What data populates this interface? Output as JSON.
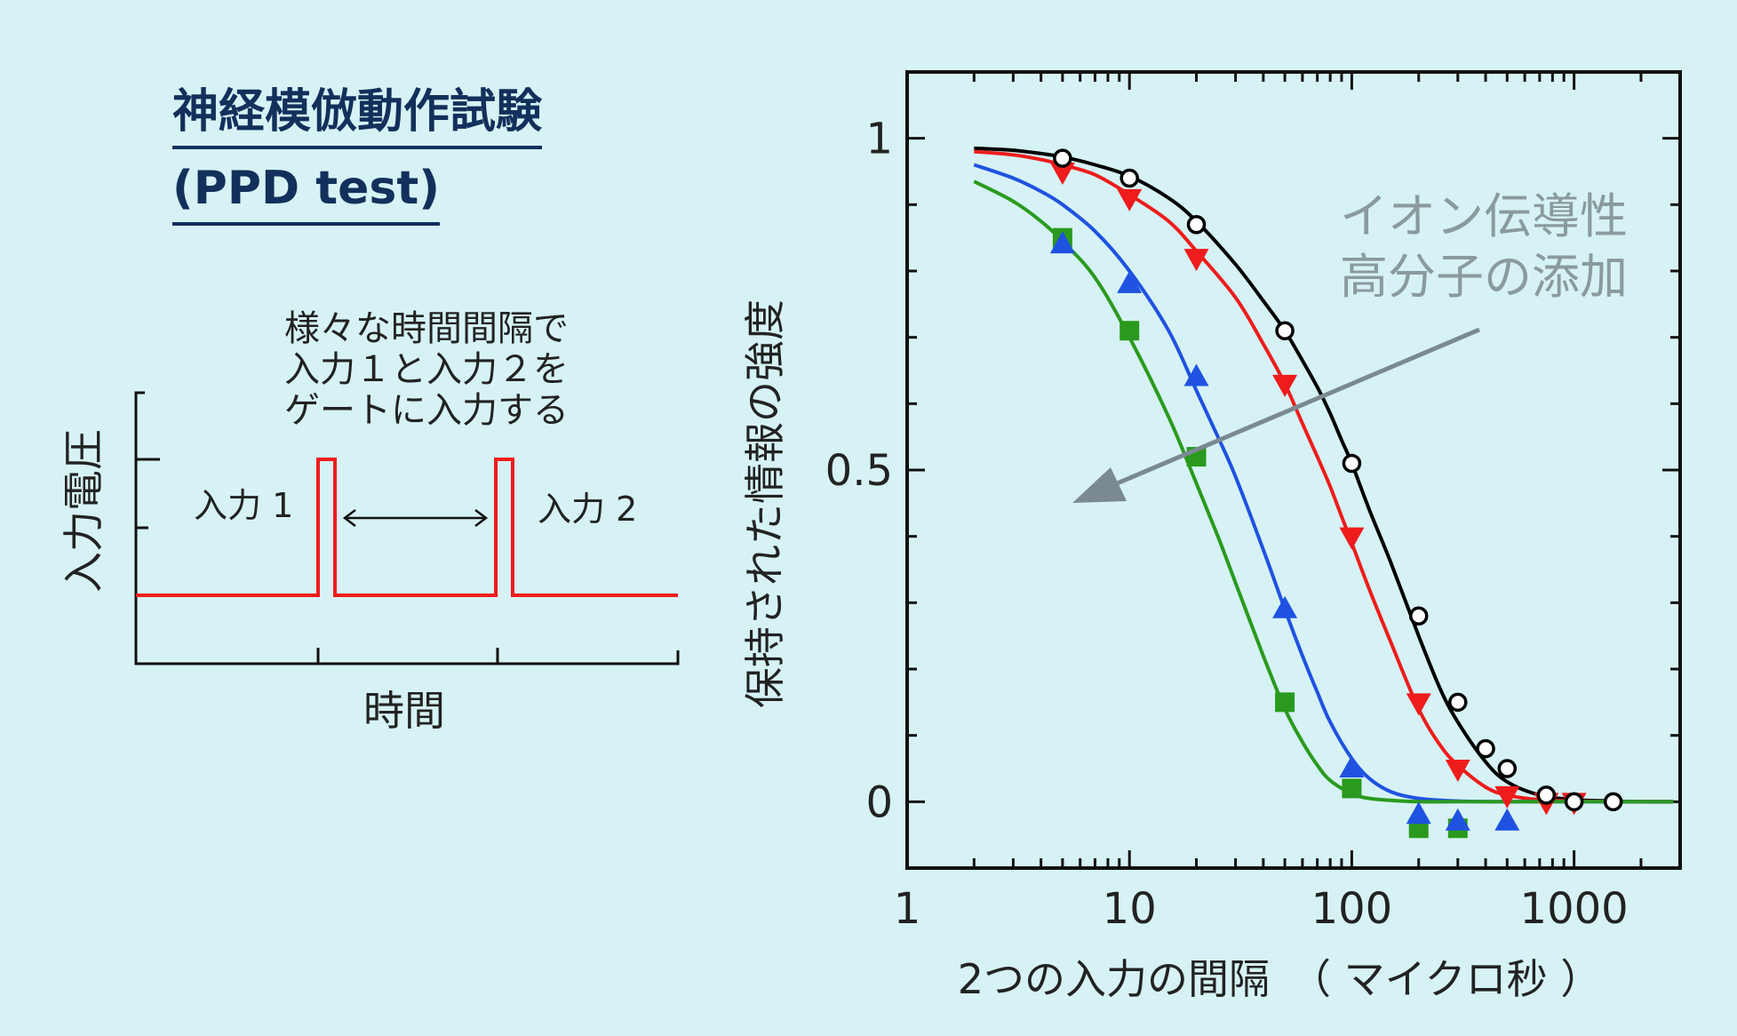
{
  "left_panel": {
    "title_line1": "神経模倣動作試験",
    "title_line2": "(PPD test)",
    "description": [
      "様々な時間間隔で",
      "入力１と入力２を",
      "ゲートに入力する"
    ],
    "y_label": "入力電圧",
    "x_label": "時間",
    "pulse1_label": "入力 1",
    "pulse2_label": "入力 2"
  },
  "annotation": {
    "line1": "イオン伝導性",
    "line2": "高分子の添加"
  },
  "colors": {
    "background": "#d6f2f4",
    "title": "#13305c",
    "pulse": "#ee1c1c",
    "arrow": "#7a8a90",
    "annotation": "#8a9a9e"
  },
  "chart_data": {
    "type": "scatter",
    "xlabel": "2つの入力の間隔　（ マイクロ秒 ）",
    "ylabel": "保持された情報の強度",
    "x_scale": "log",
    "xlim": [
      1,
      3000
    ],
    "ylim": [
      -0.1,
      1.1
    ],
    "x_ticks": [
      1,
      10,
      100,
      1000
    ],
    "x_tick_labels": [
      "1",
      "10",
      "100",
      "1000"
    ],
    "y_ticks": [
      0,
      0.5,
      1
    ],
    "y_tick_labels": [
      "0",
      "0.5",
      "1"
    ],
    "series": [
      {
        "marker": "circle",
        "color": "#000000",
        "x": [
          5,
          10,
          20,
          50,
          100,
          200,
          300,
          400,
          500,
          750,
          1000,
          1500
        ],
        "y": [
          0.97,
          0.94,
          0.87,
          0.71,
          0.51,
          0.28,
          0.15,
          0.08,
          0.05,
          0.01,
          0.0,
          0.0
        ],
        "fit_x": [
          2,
          3,
          4,
          5,
          7,
          10,
          15,
          20,
          30,
          40,
          50,
          60,
          70,
          80,
          90,
          100,
          120,
          150,
          200,
          250,
          300,
          400,
          500,
          700,
          1000,
          1500,
          2000,
          2800
        ],
        "fit_y": [
          0.985,
          0.982,
          0.977,
          0.972,
          0.96,
          0.943,
          0.91,
          0.875,
          0.81,
          0.755,
          0.71,
          0.665,
          0.625,
          0.585,
          0.545,
          0.51,
          0.44,
          0.36,
          0.25,
          0.17,
          0.12,
          0.06,
          0.03,
          0.01,
          0.003,
          0.001,
          0,
          0
        ]
      },
      {
        "marker": "triangle-down",
        "color": "#ee1c1c",
        "x": [
          5,
          10,
          20,
          50,
          100,
          200,
          300,
          500,
          750,
          1000
        ],
        "y": [
          0.95,
          0.91,
          0.82,
          0.63,
          0.4,
          0.15,
          0.05,
          0.01,
          0.0,
          0.0
        ],
        "fit_x": [
          2,
          3,
          4,
          5,
          7,
          10,
          15,
          20,
          30,
          40,
          50,
          60,
          70,
          80,
          90,
          100,
          120,
          150,
          200,
          250,
          300,
          400,
          500,
          700,
          1000,
          1500,
          2000,
          2800
        ],
        "fit_y": [
          0.98,
          0.975,
          0.968,
          0.96,
          0.945,
          0.915,
          0.875,
          0.83,
          0.76,
          0.69,
          0.63,
          0.57,
          0.52,
          0.475,
          0.43,
          0.39,
          0.32,
          0.24,
          0.14,
          0.085,
          0.055,
          0.022,
          0.01,
          0.003,
          0.001,
          0,
          0,
          0
        ]
      },
      {
        "marker": "triangle-up",
        "color": "#1f52e0",
        "x": [
          5,
          10,
          20,
          50,
          100,
          200,
          300,
          500
        ],
        "y": [
          0.84,
          0.78,
          0.64,
          0.29,
          0.05,
          -0.02,
          -0.03,
          -0.03
        ],
        "fit_x": [
          2,
          3,
          4,
          5,
          7,
          10,
          15,
          20,
          25,
          30,
          40,
          50,
          60,
          70,
          80,
          100,
          120,
          150,
          200,
          300,
          500,
          1000,
          2800
        ],
        "fit_y": [
          0.96,
          0.94,
          0.92,
          0.9,
          0.86,
          0.8,
          0.71,
          0.62,
          0.55,
          0.49,
          0.38,
          0.29,
          0.22,
          0.165,
          0.12,
          0.065,
          0.035,
          0.015,
          0.005,
          0.001,
          0,
          0,
          0
        ]
      },
      {
        "marker": "square",
        "color": "#2a9a1e",
        "x": [
          5,
          10,
          20,
          50,
          100,
          200,
          300
        ],
        "y": [
          0.85,
          0.71,
          0.52,
          0.15,
          0.02,
          -0.04,
          -0.04
        ],
        "fit_x": [
          2,
          3,
          4,
          5,
          7,
          10,
          15,
          20,
          25,
          30,
          40,
          50,
          60,
          70,
          80,
          100,
          120,
          150,
          200,
          300,
          500,
          1000,
          2800
        ],
        "fit_y": [
          0.935,
          0.905,
          0.875,
          0.845,
          0.79,
          0.7,
          0.58,
          0.48,
          0.4,
          0.33,
          0.22,
          0.14,
          0.09,
          0.055,
          0.032,
          0.012,
          0.005,
          0.002,
          0,
          0,
          0,
          0,
          0
        ]
      }
    ]
  }
}
